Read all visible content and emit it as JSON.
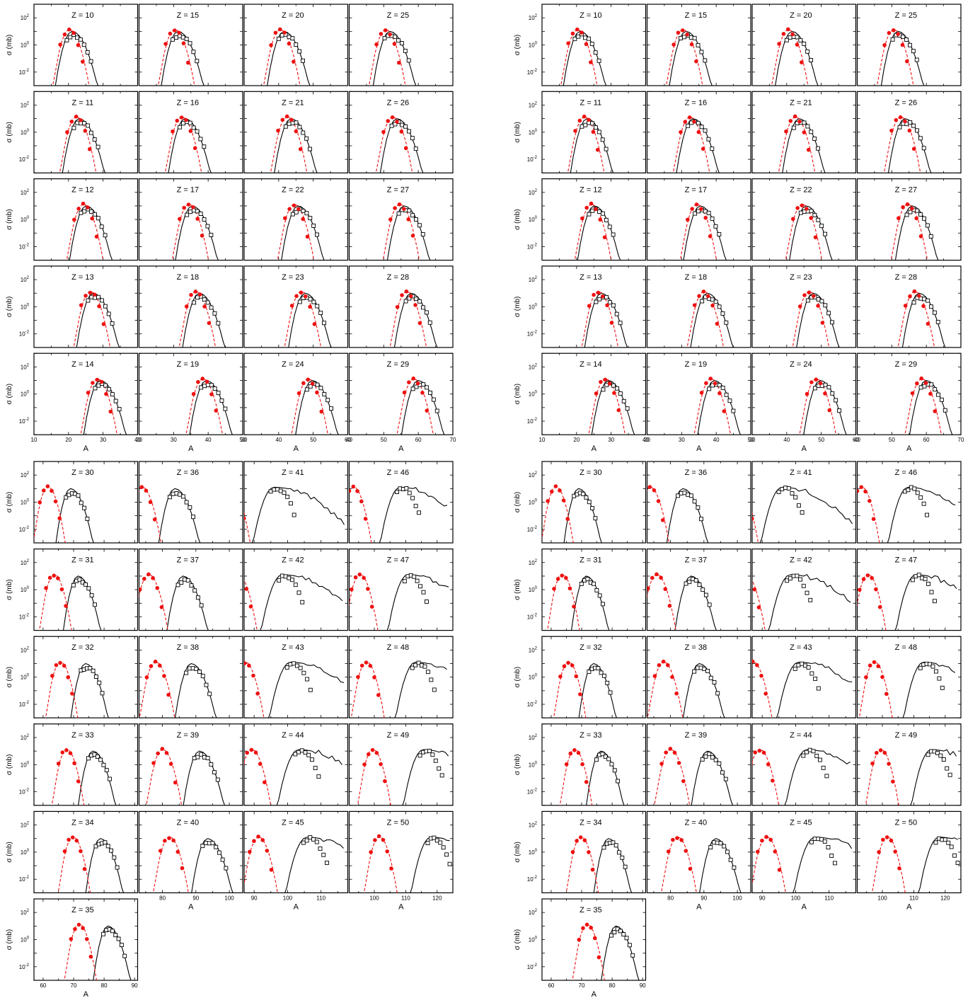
{
  "figure": {
    "y_axis_label": "σ (mb)",
    "x_axis_label": "A",
    "y_tick_labels": [
      {
        "mantissa": "10",
        "exponent": "2"
      },
      {
        "mantissa": "10",
        "exponent": "0"
      },
      {
        "mantissa": "10",
        "exponent": "-2"
      }
    ],
    "panel_title_prefix": "Z = ",
    "colors": {
      "curve_1": "#000000",
      "curve_2": "#ee1111",
      "markers_open": "#000000",
      "markers_filled": "#ee1111"
    }
  },
  "chart_data": [
    {
      "type": "line",
      "block": "top-left",
      "ylog": true,
      "ylim": [
        0.001,
        1000
      ],
      "rows": [
        [
          10,
          15,
          20,
          25
        ],
        [
          11,
          16,
          21,
          26
        ],
        [
          12,
          17,
          22,
          27
        ],
        [
          13,
          18,
          23,
          28
        ],
        [
          14,
          19,
          24,
          29
        ]
      ],
      "column_xlims": [
        [
          10,
          40
        ],
        [
          20,
          50
        ],
        [
          30,
          60
        ],
        [
          40,
          70
        ]
      ],
      "column_xticks": [
        [
          10,
          20,
          30,
          40
        ],
        [
          20,
          30,
          40,
          50
        ],
        [
          30,
          40,
          50,
          60
        ],
        [
          40,
          50,
          60,
          70
        ]
      ]
    },
    {
      "type": "line",
      "block": "top-right",
      "ylog": true,
      "ylim": [
        0.001,
        1000
      ],
      "rows": [
        [
          10,
          15,
          20,
          25
        ],
        [
          11,
          16,
          21,
          26
        ],
        [
          12,
          17,
          22,
          27
        ],
        [
          13,
          18,
          23,
          28
        ],
        [
          14,
          19,
          24,
          29
        ]
      ],
      "column_xlims": [
        [
          10,
          40
        ],
        [
          20,
          50
        ],
        [
          30,
          60
        ],
        [
          40,
          70
        ]
      ],
      "column_xticks": [
        [
          10,
          20,
          30,
          40
        ],
        [
          20,
          30,
          40,
          50
        ],
        [
          30,
          40,
          50,
          60
        ],
        [
          40,
          50,
          60,
          70
        ]
      ]
    },
    {
      "type": "line",
      "block": "bottom-left",
      "ylog": true,
      "ylim": [
        0.001,
        1000
      ],
      "rows": [
        [
          30,
          36,
          41,
          46
        ],
        [
          31,
          37,
          42,
          47
        ],
        [
          32,
          38,
          43,
          48
        ],
        [
          33,
          39,
          44,
          49
        ],
        [
          34,
          40,
          45,
          50
        ],
        [
          35
        ]
      ],
      "column_xlims": [
        [
          57,
          91
        ],
        [
          73,
          104
        ],
        [
          87,
          118
        ],
        [
          92,
          125
        ]
      ],
      "column_xticks": [
        [
          60,
          70,
          80,
          90
        ],
        [
          80,
          90,
          100
        ],
        [
          90,
          100,
          110
        ],
        [
          100,
          110,
          120
        ]
      ]
    },
    {
      "type": "line",
      "block": "bottom-right",
      "ylog": true,
      "ylim": [
        0.001,
        1000
      ],
      "rows": [
        [
          30,
          36,
          41,
          46
        ],
        [
          31,
          37,
          42,
          47
        ],
        [
          32,
          38,
          43,
          48
        ],
        [
          33,
          39,
          44,
          49
        ],
        [
          34,
          40,
          45,
          50
        ],
        [
          35
        ]
      ],
      "column_xlims": [
        [
          57,
          91
        ],
        [
          73,
          104
        ],
        [
          87,
          118
        ],
        [
          92,
          125
        ]
      ],
      "column_xticks": [
        [
          60,
          70,
          80,
          90
        ],
        [
          80,
          90,
          100
        ],
        [
          90,
          100,
          110
        ],
        [
          100,
          110,
          120
        ]
      ]
    }
  ]
}
